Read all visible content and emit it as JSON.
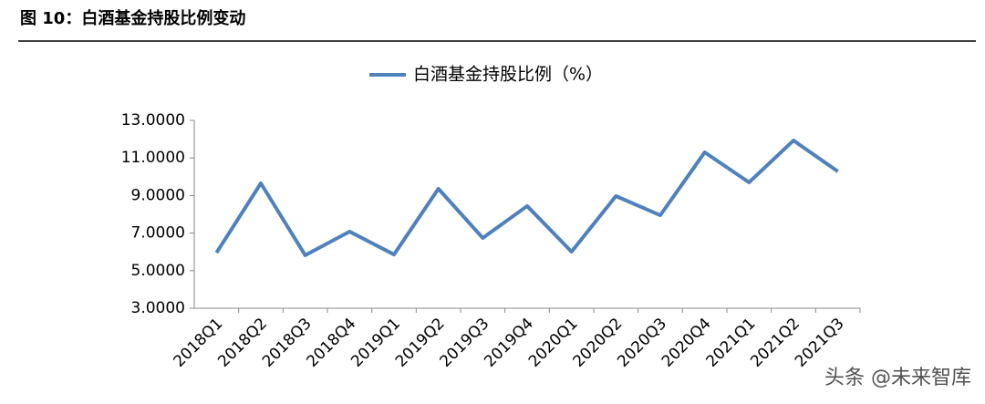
{
  "figure_caption": "图 10：白酒基金持股比例变动",
  "watermark": "头条 @未来智库",
  "chart_data": {
    "type": "line",
    "categories": [
      "2018Q1",
      "2018Q2",
      "2018Q3",
      "2018Q4",
      "2019Q1",
      "2019Q2",
      "2019Q3",
      "2019Q4",
      "2020Q1",
      "2020Q2",
      "2020Q3",
      "2020Q4",
      "2021Q1",
      "2021Q2",
      "2021Q3"
    ],
    "series": [
      {
        "name": "白酒基金持股比例（%）",
        "color": "#4f81bd",
        "values": [
          5.95,
          9.65,
          5.82,
          7.08,
          5.86,
          9.36,
          6.74,
          8.44,
          6.01,
          8.97,
          7.95,
          11.3,
          9.7,
          11.93,
          10.28
        ]
      }
    ],
    "ylim": [
      3,
      13
    ],
    "yticks": [
      {
        "value": 3,
        "label": "3.0000"
      },
      {
        "value": 5,
        "label": "5.0000"
      },
      {
        "value": 7,
        "label": "7.0000"
      },
      {
        "value": 9,
        "label": "9.0000"
      },
      {
        "value": 11,
        "label": "11.0000"
      },
      {
        "value": 13,
        "label": "13.0000"
      }
    ],
    "grid": false,
    "legend": "top"
  }
}
